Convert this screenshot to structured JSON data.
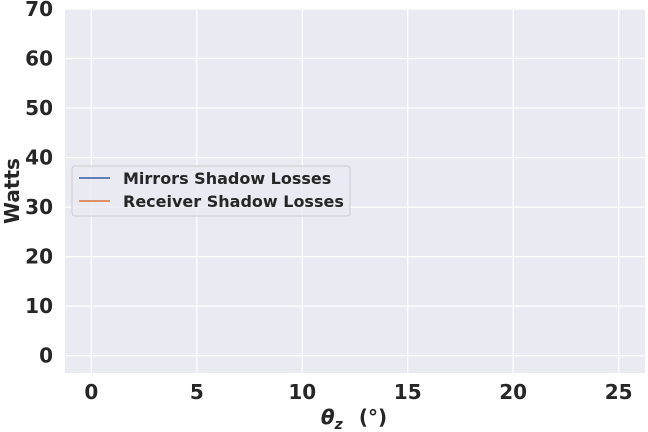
{
  "chart_data": {
    "type": "line",
    "title": "",
    "xlabel": "θz (°)",
    "xlabel_symbol": "θ",
    "xlabel_subscript": "z",
    "xlabel_unit": "(°)",
    "ylabel": "Watts",
    "xlim": [
      -1.25,
      26.25
    ],
    "ylim": [
      -3.5,
      70
    ],
    "xticks": [
      0,
      5,
      10,
      15,
      20,
      25
    ],
    "yticks": [
      0,
      10,
      20,
      30,
      40,
      50,
      60,
      70
    ],
    "grid": true,
    "legend_position": "center-left",
    "series": [
      {
        "name": "Mirrors Shadow Losses",
        "color": "#4c72b0",
        "x": [],
        "y": []
      },
      {
        "name": "Receiver Shadow Losses",
        "color": "#dd8452",
        "x": [],
        "y": []
      }
    ]
  }
}
